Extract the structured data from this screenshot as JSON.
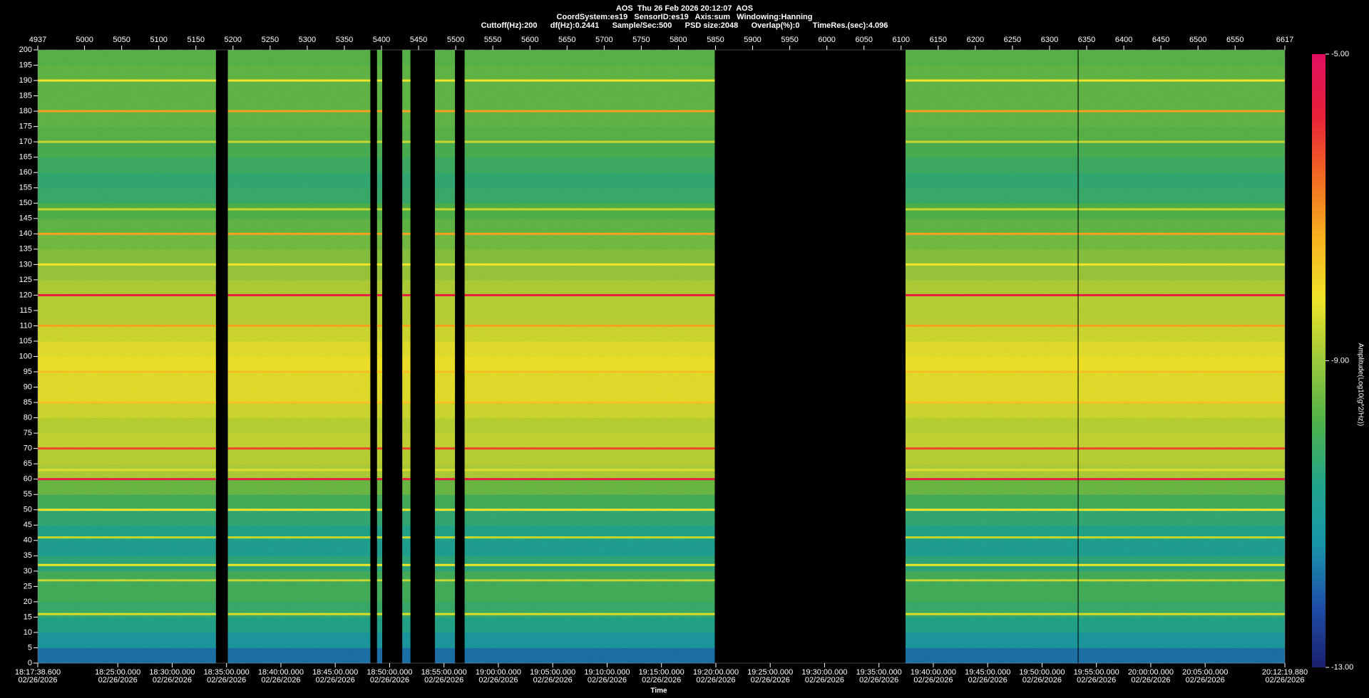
{
  "chart_data": {
    "type": "spectrogram",
    "title": "AOS  Thu 26 Feb 2026 20:12:07  AOS",
    "subtitle": "CoordSystem:es19   SensorID:es19   Axis:sum   Windowing:Hanning",
    "info": "Cuttoff(Hz):200      df(Hz):0.2441      Sample/Sec:500      PSD size:2048      Overlap(%):0      TimeRes.(sec):4.096",
    "xlabel": "Time",
    "zlabel": "Amplitude(Log10(g^2/Hz))",
    "xlim": [
      4937,
      6617
    ],
    "ylim": [
      0,
      200
    ],
    "zlim": [
      -13,
      -5
    ],
    "xticks": [
      4937,
      5000,
      5050,
      5100,
      5150,
      5200,
      5250,
      5300,
      5350,
      5400,
      5450,
      5500,
      5550,
      5600,
      5650,
      5700,
      5750,
      5800,
      5850,
      5900,
      5950,
      6000,
      6050,
      6100,
      6150,
      6200,
      6250,
      6300,
      6350,
      6400,
      6450,
      6500,
      6550,
      6617
    ],
    "time_ticks": [
      {
        "value": 4937,
        "label": "18:17:38.600",
        "date": "02/26/2026"
      },
      {
        "value": 5044.76,
        "label": "18:25:00.000",
        "date": "02/26/2026"
      },
      {
        "value": 5118.0,
        "label": "18:30:00.000",
        "date": "02/26/2026"
      },
      {
        "value": 5191.25,
        "label": "18:35:00.000",
        "date": "02/26/2026"
      },
      {
        "value": 5264.49,
        "label": "18:40:00.000",
        "date": "02/26/2026"
      },
      {
        "value": 5337.73,
        "label": "18:45:00.000",
        "date": "02/26/2026"
      },
      {
        "value": 5410.97,
        "label": "18:50:00.000",
        "date": "02/26/2026"
      },
      {
        "value": 5484.21,
        "label": "18:55:00.000",
        "date": "02/26/2026"
      },
      {
        "value": 5557.46,
        "label": "19:00:00.000",
        "date": "02/26/2026"
      },
      {
        "value": 5630.7,
        "label": "19:05:00.000",
        "date": "02/26/2026"
      },
      {
        "value": 5703.94,
        "label": "19:10:00.000",
        "date": "02/26/2026"
      },
      {
        "value": 5777.18,
        "label": "19:15:00.000",
        "date": "02/26/2026"
      },
      {
        "value": 5850.43,
        "label": "19:20:00.000",
        "date": "02/26/2026"
      },
      {
        "value": 5923.67,
        "label": "19:25:00.000",
        "date": "02/26/2026"
      },
      {
        "value": 5996.91,
        "label": "19:30:00.000",
        "date": "02/26/2026"
      },
      {
        "value": 6070.15,
        "label": "19:35:00.000",
        "date": "02/26/2026"
      },
      {
        "value": 6143.39,
        "label": "19:40:00.000",
        "date": "02/26/2026"
      },
      {
        "value": 6216.64,
        "label": "19:45:00.000",
        "date": "02/26/2026"
      },
      {
        "value": 6289.88,
        "label": "19:50:00.000",
        "date": "02/26/2026"
      },
      {
        "value": 6363.12,
        "label": "19:55:00.000",
        "date": "02/26/2026"
      },
      {
        "value": 6436.36,
        "label": "20:00:00.000",
        "date": "02/26/2026"
      },
      {
        "value": 6509.61,
        "label": "20:05:00.000",
        "date": "02/26/2026"
      },
      {
        "value": 6617,
        "label": "20:12:19.880",
        "date": "02/26/2026"
      }
    ],
    "yticks": [
      0,
      5,
      10,
      15,
      20,
      25,
      30,
      35,
      40,
      45,
      50,
      55,
      60,
      65,
      70,
      75,
      80,
      85,
      90,
      95,
      100,
      105,
      110,
      115,
      120,
      125,
      130,
      135,
      140,
      145,
      150,
      155,
      160,
      165,
      170,
      175,
      180,
      185,
      190,
      195,
      200
    ],
    "zticks": [
      {
        "value": -5,
        "label": "-5.00"
      },
      {
        "value": -9,
        "label": "-9.00"
      },
      {
        "value": -13,
        "label": "-13.00"
      }
    ],
    "colormap": [
      "#1b1f6e",
      "#1f4fa8",
      "#1895a8",
      "#22a58a",
      "#4fb24a",
      "#9bc83a",
      "#f0e428",
      "#f7b21e",
      "#f26b22",
      "#e8203a",
      "#e0105e"
    ],
    "segments": [
      [
        4937,
        5177
      ],
      [
        5193,
        5385
      ],
      [
        5394,
        5401
      ],
      [
        5428,
        5439
      ],
      [
        5472,
        5499
      ],
      [
        5512,
        5849
      ],
      [
        6106,
        6338
      ],
      [
        6339,
        6617
      ]
    ],
    "bins": [
      0,
      5,
      10,
      15,
      20,
      25,
      30,
      35,
      40,
      45,
      50,
      55,
      60,
      65,
      70,
      75,
      80,
      85,
      90,
      95,
      100,
      105,
      110,
      115,
      120,
      125,
      130,
      135,
      140,
      145,
      150,
      155,
      160,
      165,
      170,
      175,
      180,
      185,
      190,
      195,
      200
    ],
    "amplitude": [
      -11.8,
      -11.2,
      -10.6,
      -10.2,
      -10.0,
      -10.0,
      -10.4,
      -10.8,
      -10.6,
      -10.3,
      -10.0,
      -9.5,
      -8.8,
      -8.7,
      -8.6,
      -8.7,
      -8.5,
      -8.3,
      -8.3,
      -8.2,
      -8.3,
      -8.5,
      -8.7,
      -8.7,
      -8.8,
      -9.0,
      -9.2,
      -9.4,
      -9.6,
      -9.8,
      -10.2,
      -10.3,
      -10.1,
      -9.9,
      -9.7,
      -9.6,
      -9.6,
      -9.6,
      -9.6,
      -9.7
    ],
    "tones": [
      {
        "freq": 120,
        "amplitude": -5.6
      },
      {
        "freq": 60,
        "amplitude": -5.6
      },
      {
        "freq": 70,
        "amplitude": -6.2
      },
      {
        "freq": 180,
        "amplitude": -7.2
      },
      {
        "freq": 140,
        "amplitude": -7.2
      },
      {
        "freq": 110,
        "amplitude": -7.2
      },
      {
        "freq": 95,
        "amplitude": -7.6
      },
      {
        "freq": 85,
        "amplitude": -7.6
      },
      {
        "freq": 190,
        "amplitude": -8.2
      },
      {
        "freq": 130,
        "amplitude": -8.2
      },
      {
        "freq": 50,
        "amplitude": -8.2
      },
      {
        "freq": 32,
        "amplitude": -8.2
      },
      {
        "freq": 170,
        "amplitude": -8.6
      },
      {
        "freq": 148,
        "amplitude": -8.6
      },
      {
        "freq": 41,
        "amplitude": -8.6
      },
      {
        "freq": 16,
        "amplitude": -8.4
      },
      {
        "freq": 27,
        "amplitude": -8.6
      },
      {
        "freq": 63,
        "amplitude": -8.4
      }
    ]
  }
}
